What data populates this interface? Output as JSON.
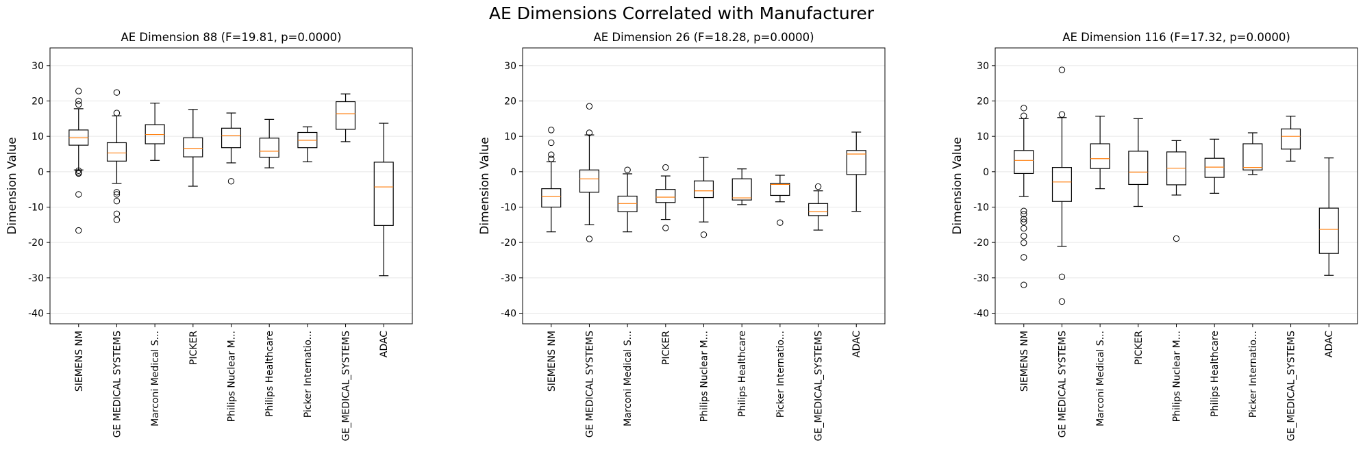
{
  "suptitle": "AE Dimensions Correlated with Manufacturer",
  "ylabel": "Dimension Value",
  "colors": {
    "median": "#ff7f0e",
    "box": "#000000",
    "grid": "#e6e6e6"
  },
  "chart_data": [
    {
      "type": "boxplot",
      "title": "AE Dimension 88 (F=19.81, p=0.0000)",
      "ylabel": "Dimension Value",
      "ylim": [
        -43,
        35
      ],
      "yticks": [
        -40,
        -30,
        -20,
        -10,
        0,
        10,
        20,
        30
      ],
      "grid": "y",
      "categories": [
        "SIEMENS NM",
        "GE MEDICAL SYSTEMS",
        "Marconi Medical S...",
        "PICKER",
        "Philips Nuclear M...",
        "Philips Healthcare",
        "Picker Internatio...",
        "GE_MEDICAL_SYSTEMS",
        "ADAC"
      ],
      "boxes": [
        {
          "whislo": 0.5,
          "q1": 7.5,
          "med": 9.6,
          "q3": 11.8,
          "whishi": 17.8,
          "fliers": [
            22.8,
            20.0,
            19.0,
            0.3,
            -0.2,
            -0.5,
            -6.4,
            -16.6
          ]
        },
        {
          "whislo": -3.3,
          "q1": 3.0,
          "med": 5.3,
          "q3": 8.2,
          "whishi": 15.8,
          "fliers": [
            22.4,
            16.6,
            -5.8,
            -6.4,
            -8.3,
            -11.9,
            -13.6
          ]
        },
        {
          "whislo": 3.2,
          "q1": 7.9,
          "med": 10.5,
          "q3": 13.3,
          "whishi": 19.4,
          "fliers": []
        },
        {
          "whislo": -4.1,
          "q1": 4.2,
          "med": 6.6,
          "q3": 9.6,
          "whishi": 17.6,
          "fliers": []
        },
        {
          "whislo": 2.5,
          "q1": 6.8,
          "med": 10.2,
          "q3": 12.3,
          "whishi": 16.6,
          "fliers": [
            -2.7
          ]
        },
        {
          "whislo": 1.1,
          "q1": 4.1,
          "med": 5.8,
          "q3": 9.5,
          "whishi": 14.8,
          "fliers": []
        },
        {
          "whislo": 2.8,
          "q1": 6.8,
          "med": 8.9,
          "q3": 11.1,
          "whishi": 12.7,
          "fliers": []
        },
        {
          "whislo": 8.5,
          "q1": 12.0,
          "med": 16.4,
          "q3": 19.8,
          "whishi": 22.0,
          "fliers": []
        },
        {
          "whislo": -29.4,
          "q1": -15.2,
          "med": -4.3,
          "q3": 2.7,
          "whishi": 13.7,
          "fliers": []
        }
      ]
    },
    {
      "type": "boxplot",
      "title": "AE Dimension 26 (F=18.28, p=0.0000)",
      "ylabel": "Dimension Value",
      "ylim": [
        -43,
        35
      ],
      "yticks": [
        -40,
        -30,
        -20,
        -10,
        0,
        10,
        20,
        30
      ],
      "grid": "y",
      "categories": [
        "SIEMENS NM",
        "GE MEDICAL SYSTEMS",
        "Marconi Medical S...",
        "PICKER",
        "Philips Nuclear M...",
        "Philips Healthcare",
        "Picker Internatio...",
        "GE_MEDICAL_SYSTEMS",
        "ADAC"
      ],
      "boxes": [
        {
          "whislo": -17.0,
          "q1": -10.0,
          "med": -7.0,
          "q3": -4.8,
          "whishi": 2.8,
          "fliers": [
            11.8,
            8.2,
            4.8,
            3.6
          ]
        },
        {
          "whislo": -15.0,
          "q1": -5.8,
          "med": -2.0,
          "q3": 0.5,
          "whishi": 10.4,
          "fliers": [
            18.5,
            11.0,
            -19.0
          ]
        },
        {
          "whislo": -17.0,
          "q1": -11.3,
          "med": -9.0,
          "q3": -6.9,
          "whishi": -0.6,
          "fliers": [
            0.5
          ]
        },
        {
          "whislo": -13.5,
          "q1": -8.7,
          "med": -7.2,
          "q3": -5.0,
          "whishi": -1.2,
          "fliers": [
            1.2,
            -15.9
          ]
        },
        {
          "whislo": -14.2,
          "q1": -7.3,
          "med": -5.4,
          "q3": -2.6,
          "whishi": 4.1,
          "fliers": [
            -17.8
          ]
        },
        {
          "whislo": -9.3,
          "q1": -8.0,
          "med": -7.4,
          "q3": -2.0,
          "whishi": 0.8,
          "fliers": []
        },
        {
          "whislo": -8.5,
          "q1": -6.7,
          "med": -3.6,
          "q3": -3.3,
          "whishi": -1.0,
          "fliers": [
            -14.4
          ]
        },
        {
          "whislo": -16.5,
          "q1": -12.4,
          "med": -11.3,
          "q3": -9.0,
          "whishi": -5.4,
          "fliers": [
            -4.2
          ]
        },
        {
          "whislo": -11.2,
          "q1": -0.8,
          "med": 5.0,
          "q3": 6.0,
          "whishi": 11.2,
          "fliers": []
        }
      ]
    },
    {
      "type": "boxplot",
      "title": "AE Dimension 116 (F=17.32, p=0.0000)",
      "ylabel": "Dimension Value",
      "ylim": [
        -43,
        35
      ],
      "yticks": [
        -40,
        -30,
        -20,
        -10,
        0,
        10,
        20,
        30
      ],
      "grid": "y",
      "categories": [
        "SIEMENS NM",
        "GE MEDICAL SYSTEMS",
        "Marconi Medical S...",
        "PICKER",
        "Philips Nuclear M...",
        "Philips Healthcare",
        "Picker Internatio...",
        "GE_MEDICAL_SYSTEMS",
        "ADAC"
      ],
      "boxes": [
        {
          "whislo": -7.0,
          "q1": -0.5,
          "med": 3.2,
          "q3": 6.0,
          "whishi": 15.0,
          "fliers": [
            18.0,
            15.8,
            -11.1,
            -12.0,
            -13.4,
            -14.2,
            -16.0,
            -18.2,
            -20.1,
            -24.2,
            -32.0
          ]
        },
        {
          "whislo": -21.1,
          "q1": -8.4,
          "med": -2.9,
          "q3": 1.2,
          "whishi": 15.3,
          "fliers": [
            28.8,
            16.2,
            -29.7,
            -36.7
          ]
        },
        {
          "whislo": -4.8,
          "q1": 0.9,
          "med": 3.7,
          "q3": 7.9,
          "whishi": 15.7,
          "fliers": []
        },
        {
          "whislo": -9.8,
          "q1": -3.6,
          "med": -0.1,
          "q3": 5.8,
          "whishi": 15.0,
          "fliers": []
        },
        {
          "whislo": -6.6,
          "q1": -3.7,
          "med": 1.0,
          "q3": 5.6,
          "whishi": 8.8,
          "fliers": [
            -18.9
          ]
        },
        {
          "whislo": -6.1,
          "q1": -1.6,
          "med": 1.3,
          "q3": 3.8,
          "whishi": 9.2,
          "fliers": []
        },
        {
          "whislo": -0.8,
          "q1": 0.5,
          "med": 1.2,
          "q3": 7.9,
          "whishi": 11.0,
          "fliers": []
        },
        {
          "whislo": 3.0,
          "q1": 6.4,
          "med": 10.0,
          "q3": 12.1,
          "whishi": 15.7,
          "fliers": []
        },
        {
          "whislo": -29.3,
          "q1": -23.1,
          "med": -16.3,
          "q3": -10.3,
          "whishi": 3.9,
          "fliers": []
        }
      ]
    }
  ]
}
